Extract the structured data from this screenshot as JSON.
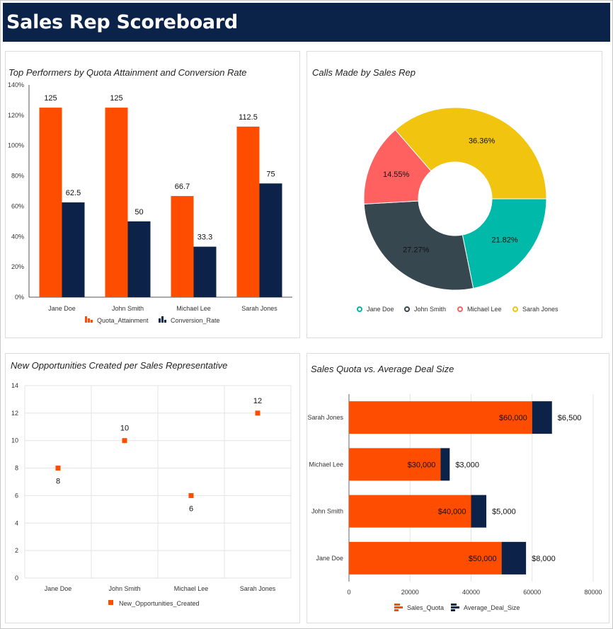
{
  "page": {
    "title": "Sales Rep Scoreboard"
  },
  "colors": {
    "orange": "#ff4d00",
    "navy": "#0c2249",
    "teal": "#00b9a9",
    "charcoal": "#37474f",
    "coral": "#ff6161",
    "gold": "#f1c40f",
    "grid": "#e3e3e3"
  },
  "chart_data": [
    {
      "id": "quota",
      "type": "bar",
      "title": "Top Performers by Quota Attainment and Conversion Rate",
      "categories": [
        "Jane Doe",
        "John Smith",
        "Michael Lee",
        "Sarah Jones"
      ],
      "series": [
        {
          "name": "Quota_Attainment",
          "values": [
            125,
            125,
            66.7,
            112.5
          ],
          "color": "#ff4d00",
          "labels": [
            "125",
            "125",
            "66.7",
            "112.5"
          ]
        },
        {
          "name": "Conversion_Rate",
          "values": [
            62.5,
            50,
            33.3,
            75
          ],
          "color": "#0c2249",
          "labels": [
            "62.5",
            "50",
            "33.3",
            "75"
          ]
        }
      ],
      "ylim": [
        0,
        140
      ],
      "yticks": [
        "0%",
        "20%",
        "40%",
        "60%",
        "80%",
        "100%",
        "120%",
        "140%"
      ],
      "legend": "bottom"
    },
    {
      "id": "calls",
      "type": "pie",
      "title": "Calls Made by Sales Rep",
      "labels": [
        "Jane Doe",
        "John Smith",
        "Michael Lee",
        "Sarah Jones"
      ],
      "values": [
        21.82,
        27.27,
        14.55,
        36.36
      ],
      "value_labels": [
        "21.82%",
        "27.27%",
        "14.55%",
        "36.36%"
      ],
      "colors": [
        "#00b9a9",
        "#37474f",
        "#ff6161",
        "#f1c40f"
      ],
      "donut": true,
      "legend": "bottom"
    },
    {
      "id": "opps",
      "type": "scatter",
      "title": "New Opportunities Created per Sales Representative",
      "categories": [
        "Jane Doe",
        "John Smith",
        "Michael Lee",
        "Sarah Jones"
      ],
      "series": [
        {
          "name": "New_Opportunities_Created",
          "values": [
            8,
            10,
            6,
            12
          ],
          "color": "#ff4d00",
          "labels": [
            "8",
            "10",
            "6",
            "12"
          ]
        }
      ],
      "ylim": [
        0,
        14
      ],
      "yticks": [
        "0",
        "2",
        "4",
        "6",
        "8",
        "10",
        "12",
        "14"
      ],
      "legend": "bottom"
    },
    {
      "id": "deals",
      "type": "bar",
      "orientation": "horizontal",
      "stacked": true,
      "title": "Sales Quota vs. Average Deal Size",
      "categories": [
        "Jane Doe",
        "John Smith",
        "Michael Lee",
        "Sarah Jones"
      ],
      "series": [
        {
          "name": "Sales_Quota",
          "values": [
            50000,
            40000,
            30000,
            60000
          ],
          "color": "#ff4d00",
          "labels": [
            "$50,000",
            "$40,000",
            "$30,000",
            "$60,000"
          ]
        },
        {
          "name": "Average_Deal_Size",
          "values": [
            8000,
            5000,
            3000,
            6500
          ],
          "color": "#0c2249",
          "labels": [
            "$8,000",
            "$5,000",
            "$3,000",
            "$6,500"
          ]
        }
      ],
      "xlim": [
        0,
        80000
      ],
      "xticks": [
        "0",
        "20000",
        "40000",
        "60000",
        "80000"
      ],
      "legend": "bottom"
    }
  ]
}
